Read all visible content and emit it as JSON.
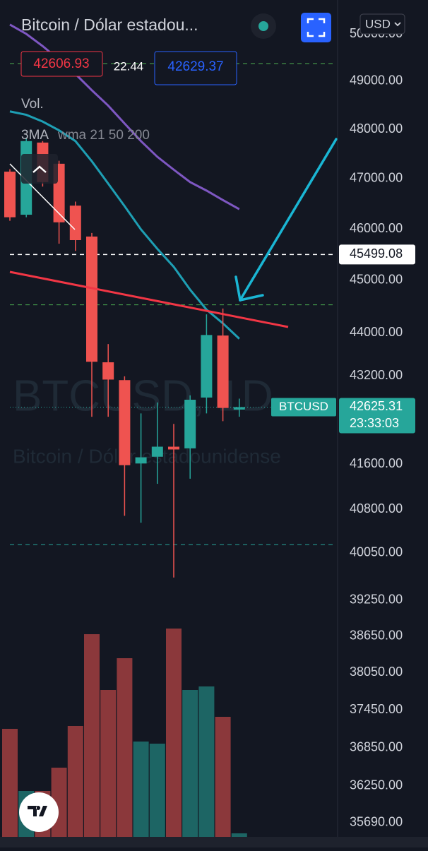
{
  "chart_data": {
    "type": "candlestick",
    "title": "Bitcoin / Dólar estadou...",
    "currency": "USD",
    "bid": 42606.93,
    "spread": 22.44,
    "ask": 42629.37,
    "volume_label": "Vol.",
    "indicator": "3MA",
    "indicator_params": "wma 21 50 200",
    "watermark": {
      "symbol": "BTCUSD, 1D",
      "description": "Bitcoin / Dólar estadounidense"
    },
    "log_scale": true,
    "ylim": [
      35470,
      50730
    ],
    "yticks": [
      {
        "value": 50000,
        "label": "50000.00"
      },
      {
        "value": 49000,
        "label": "49000.00"
      },
      {
        "value": 48000,
        "label": "48000.00"
      },
      {
        "value": 47000,
        "label": "47000.00"
      },
      {
        "value": 46000,
        "label": "46000.00"
      },
      {
        "value": 45000,
        "label": "45000.00"
      },
      {
        "value": 44000,
        "label": "44000.00"
      },
      {
        "value": 43200,
        "label": "43200.00"
      },
      {
        "value": 41600,
        "label": "41600.00"
      },
      {
        "value": 40800,
        "label": "40800.00"
      },
      {
        "value": 40050,
        "label": "40050.00"
      },
      {
        "value": 39250,
        "label": "39250.00"
      },
      {
        "value": 38650,
        "label": "38650.00"
      },
      {
        "value": 38050,
        "label": "38050.00"
      },
      {
        "value": 37450,
        "label": "37450.00"
      },
      {
        "value": 36850,
        "label": "36850.00"
      },
      {
        "value": 36250,
        "label": "36250.00"
      },
      {
        "value": 35690,
        "label": "35690.00"
      }
    ],
    "up_color": "#26a69a",
    "down_color": "#ef5350",
    "open": [
      47140,
      46280,
      47730,
      47300,
      46460,
      45850,
      43450,
      43120,
      41610,
      41730,
      41910,
      41880,
      42800,
      43950,
      42580
    ],
    "high": [
      47190,
      47830,
      47760,
      47360,
      46540,
      45920,
      43790,
      43190,
      42510,
      42710,
      42320,
      42840,
      44350,
      44460,
      42780
    ],
    "low": [
      46160,
      46230,
      46840,
      45710,
      45570,
      42450,
      42450,
      40690,
      40570,
      41250,
      39630,
      41340,
      42510,
      42370,
      42450
    ],
    "close": [
      46230,
      47760,
      46930,
      46130,
      45780,
      43460,
      43130,
      41580,
      41720,
      41910,
      41860,
      42760,
      43960,
      42610,
      42625.31
    ],
    "volume": [
      153,
      65,
      65,
      98,
      157,
      287,
      208,
      253,
      135,
      132,
      295,
      208,
      213,
      170,
      5
    ],
    "volume_lim": [
      0,
      320
    ],
    "moving_averages": [
      {
        "color": "#7e57c2",
        "values": [
          50200,
          50000,
          49740,
          49450,
          49150,
          48810,
          48490,
          48120,
          47760,
          47440,
          47180,
          46930,
          46760,
          46570,
          46390
        ]
      },
      {
        "color": "#1e9fb4",
        "values": [
          48370,
          48300,
          48160,
          47980,
          47760,
          47350,
          46900,
          46450,
          45990,
          45610,
          45260,
          44820,
          44440,
          44180,
          43890
        ]
      }
    ],
    "levels": [
      {
        "value": 49370,
        "color": "#4caf50"
      },
      {
        "value": 44530,
        "color": "#4caf50"
      },
      {
        "value": 40190,
        "color": "#26a69a"
      }
    ],
    "marked_level": {
      "value": 45499.08,
      "color": "#ffffff"
    },
    "last_price": {
      "symbol": "BTCUSD",
      "value": 42625.31,
      "countdown": "23:33:03",
      "color": "#26a69a"
    }
  }
}
